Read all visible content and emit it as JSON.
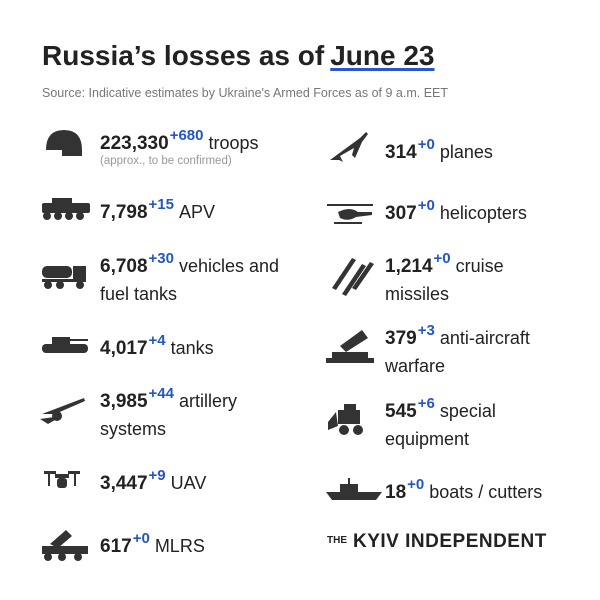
{
  "header": {
    "title": "Russia’s losses as of",
    "date": "June 23",
    "source": "Source: Indicative estimates by Ukraine's Armed Forces as of 9 a.m. EET"
  },
  "left": [
    {
      "value": "223,330",
      "change": "+680",
      "label": "troops",
      "note": "(approx., to be confirmed)"
    },
    {
      "value": "7,798",
      "change": "+15",
      "label": "APV"
    },
    {
      "value": "6,708",
      "change": "+30",
      "label": "vehicles and fuel tanks"
    },
    {
      "value": "4,017",
      "change": "+4",
      "label": "tanks"
    },
    {
      "value": "3,985",
      "change": "+44",
      "label": "artillery systems"
    },
    {
      "value": "3,447",
      "change": "+9",
      "label": "UAV"
    },
    {
      "value": "617",
      "change": "+0",
      "label": "MLRS"
    }
  ],
  "right": [
    {
      "value": "314",
      "change": "+0",
      "label": "planes"
    },
    {
      "value": "307",
      "change": "+0",
      "label": "helicopters"
    },
    {
      "value": "1,214",
      "change": "+0",
      "label": "cruise missiles"
    },
    {
      "value": "379",
      "change": "+3",
      "label": "anti-aircraft warfare"
    },
    {
      "value": "545",
      "change": "+6",
      "label": "special equipment"
    },
    {
      "value": "18",
      "change": "+0",
      "label": "boats / cutters"
    }
  ],
  "logo": {
    "prefix": "THE",
    "name": "KYIV INDEPENDENT"
  }
}
